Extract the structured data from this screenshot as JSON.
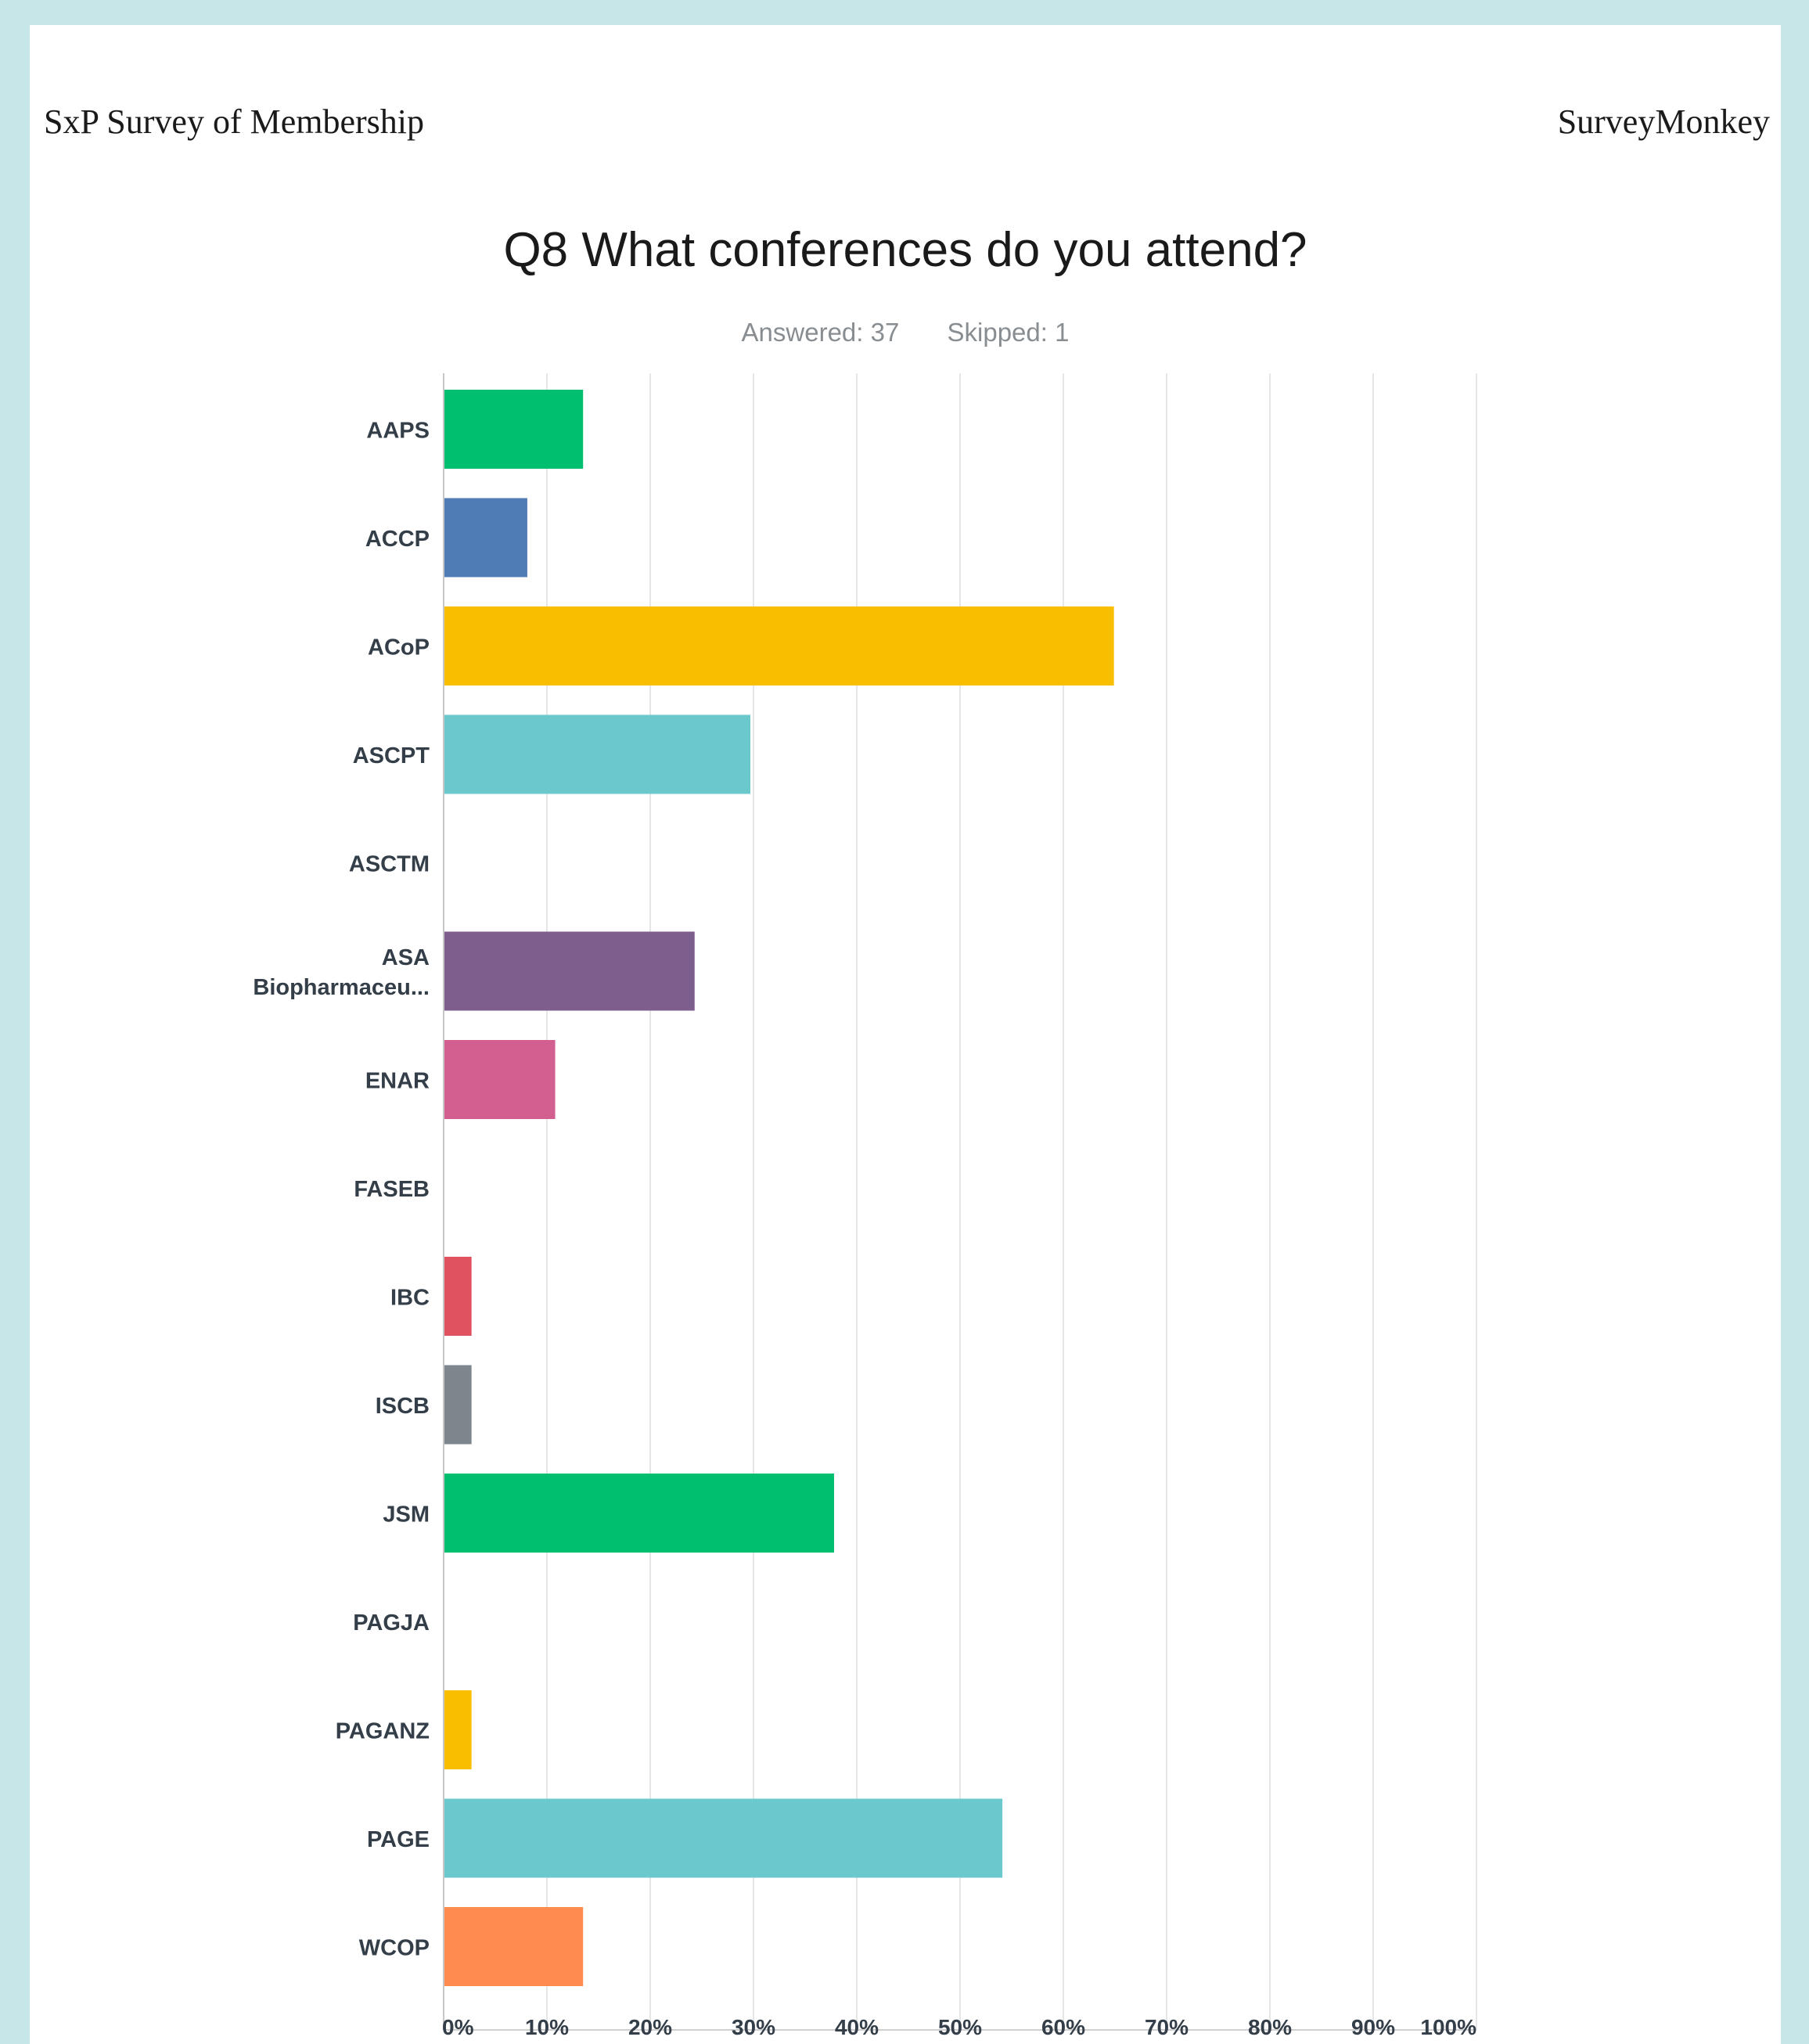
{
  "header": {
    "left_title": "SxP Survey of Membership",
    "right_title": "SurveyMonkey"
  },
  "question": {
    "title": "Q8 What conferences do you attend?",
    "answered": "Answered: 37",
    "skipped": "Skipped: 1"
  },
  "chart_data": {
    "type": "bar",
    "orientation": "horizontal",
    "categories": [
      "AAPS",
      "ACCP",
      "ACoP",
      "ASCPT",
      "ASCTM",
      "ASA Biopharmaceu...",
      "ENAR",
      "FASEB",
      "IBC",
      "ISCB",
      "JSM",
      "PAGJA",
      "PAGANZ",
      "PAGE",
      "WCOP"
    ],
    "category_lines": [
      [
        "AAPS"
      ],
      [
        "ACCP"
      ],
      [
        "ACoP"
      ],
      [
        "ASCPT"
      ],
      [
        "ASCTM"
      ],
      [
        "ASA",
        "Biopharmaceu..."
      ],
      [
        "ENAR"
      ],
      [
        "FASEB"
      ],
      [
        "IBC"
      ],
      [
        "ISCB"
      ],
      [
        "JSM"
      ],
      [
        "PAGJA"
      ],
      [
        "PAGANZ"
      ],
      [
        "PAGE"
      ],
      [
        "WCOP"
      ]
    ],
    "values": [
      13.5,
      8.1,
      64.9,
      29.7,
      0,
      24.3,
      10.8,
      0,
      2.7,
      2.7,
      37.8,
      0,
      2.7,
      54.1,
      13.5
    ],
    "colors": [
      "#00bf6f",
      "#507cb6",
      "#f9be00",
      "#6bc8cd",
      "#6bc8cd",
      "#7d5e8d",
      "#d25f90",
      "#d25f90",
      "#e05260",
      "#7d868c",
      "#00bf6f",
      "#00bf6f",
      "#f9be00",
      "#6bc8cd",
      "#ff8b4f"
    ],
    "x_ticks": [
      "0%",
      "10%",
      "20%",
      "30%",
      "40%",
      "50%",
      "60%",
      "70%",
      "80%",
      "90%",
      "100%"
    ],
    "xlim": [
      0,
      100
    ],
    "grid": true
  }
}
